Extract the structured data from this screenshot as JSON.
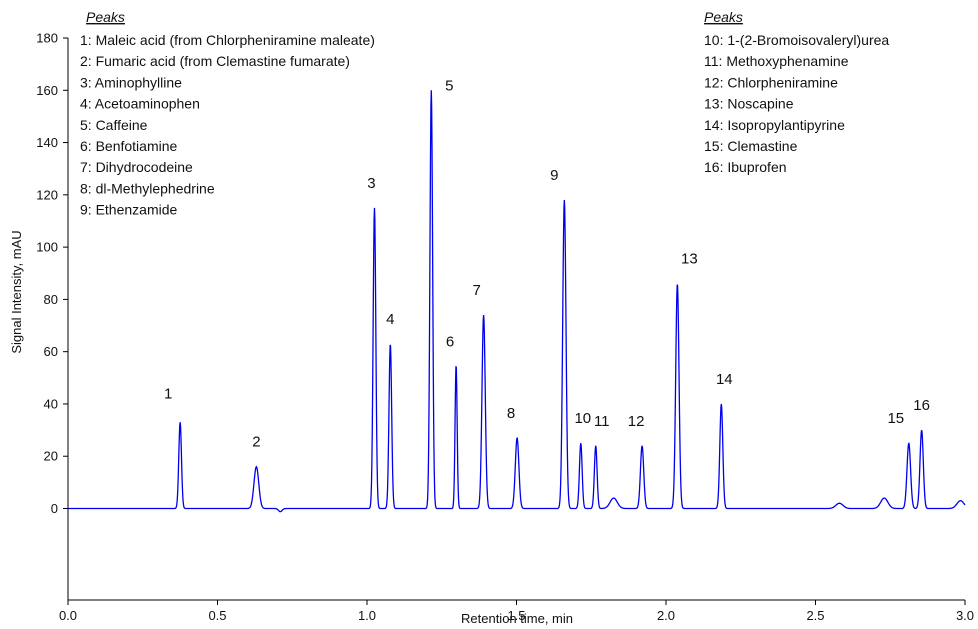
{
  "chart_data": {
    "type": "line",
    "xlabel": "Retention time, min",
    "ylabel": "Signal Intensity, mAU",
    "xlim": [
      0.0,
      3.0
    ],
    "ylim": [
      -35,
      180
    ],
    "x_ticks": [
      "0.0",
      "0.5",
      "1.0",
      "1.5",
      "2.0",
      "2.5",
      "3.0"
    ],
    "x_tick_values": [
      0.0,
      0.5,
      1.0,
      1.5,
      2.0,
      2.5,
      3.0
    ],
    "y_ticks": [
      "0",
      "20",
      "40",
      "60",
      "80",
      "100",
      "120",
      "140",
      "160",
      "180"
    ],
    "y_tick_values": [
      0,
      20,
      40,
      60,
      80,
      100,
      120,
      140,
      160,
      180
    ],
    "grid": false,
    "line_color": "#0000ee",
    "baseline": 0,
    "peaks": [
      {
        "label": "1",
        "x": 0.375,
        "y": 33
      },
      {
        "label": "2",
        "x": 0.63,
        "y": 16
      },
      {
        "label": "3",
        "x": 1.025,
        "y": 115
      },
      {
        "label": "4",
        "x": 1.078,
        "y": 63
      },
      {
        "label": "5",
        "x": 1.215,
        "y": 160
      },
      {
        "label": "6",
        "x": 1.298,
        "y": 55
      },
      {
        "label": "7",
        "x": 1.39,
        "y": 74
      },
      {
        "label": "8",
        "x": 1.502,
        "y": 27
      },
      {
        "label": "9",
        "x": 1.66,
        "y": 118
      },
      {
        "label": "10",
        "x": 1.715,
        "y": 25
      },
      {
        "label": "11",
        "x": 1.765,
        "y": 24
      },
      {
        "label": "12",
        "x": 1.92,
        "y": 24
      },
      {
        "label": "13",
        "x": 2.038,
        "y": 86
      },
      {
        "label": "14",
        "x": 2.185,
        "y": 40
      },
      {
        "label": "15",
        "x": 2.812,
        "y": 25
      },
      {
        "label": "16",
        "x": 2.855,
        "y": 30
      }
    ],
    "minor_peaks": [
      {
        "x": 1.825,
        "y": 4
      },
      {
        "x": 2.73,
        "y": 4
      },
      {
        "x": 2.58,
        "y": 2
      },
      {
        "x": 2.985,
        "y": 3
      }
    ],
    "legend_left": {
      "heading": "Peaks",
      "entries": [
        "1: Maleic acid (from Chlorpheniramine maleate)",
        "2: Fumaric acid (from Clemastine fumarate)",
        "3:  Aminophylline",
        "4: Acetoaminophen",
        "5: Caffeine",
        "6: Benfotiamine",
        "7: Dihydrocodeine",
        "8: dl-Methylephedrine",
        "9: Ethenzamide"
      ]
    },
    "legend_right": {
      "heading": "Peaks",
      "entries": [
        "10: 1-(2-Bromoisovaleryl)urea",
        "11: Methoxyphenamine",
        "12: Chlorpheniramine",
        "13: Noscapine",
        "14: Isopropylantipyrine",
        "15: Clemastine",
        "16: Ibuprofen"
      ]
    }
  }
}
